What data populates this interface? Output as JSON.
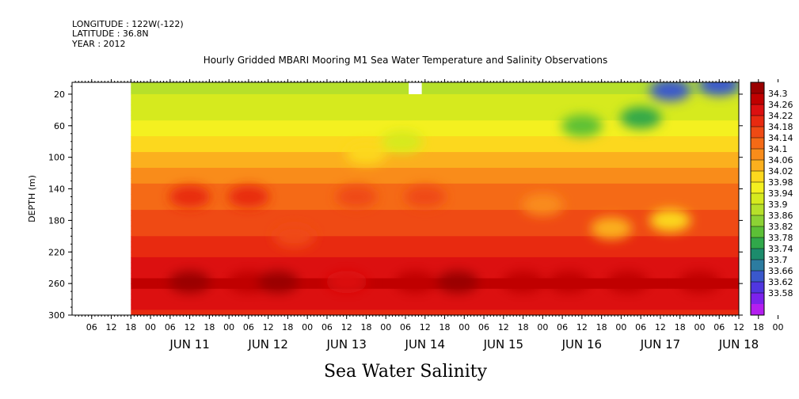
{
  "header": {
    "longitude": "LONGITUDE : 122W(-122)",
    "latitude": "LATITUDE : 36.8N",
    "year": "YEAR : 2012"
  },
  "chart_data": {
    "type": "heatmap",
    "title": "Hourly Gridded MBARI Mooring M1 Sea Water Temperature and Salinity Observations",
    "xlabel": "Sea Water Salinity",
    "ylabel": "DEPTH (m)",
    "x_range": [
      "2012-06-10T00:00",
      "2012-06-18T12:00"
    ],
    "data_start": "2012-06-10T18:00",
    "hour_ticks": [
      "06",
      "12",
      "18",
      "00",
      "06",
      "12",
      "18",
      "00",
      "06",
      "12",
      "18",
      "00",
      "06",
      "12",
      "18",
      "00",
      "06",
      "12",
      "18",
      "00",
      "06",
      "12",
      "18",
      "00",
      "06",
      "12",
      "18",
      "00",
      "06",
      "12",
      "18",
      "00",
      "06",
      "12",
      "18",
      "00"
    ],
    "day_labels": [
      "JUN 11",
      "JUN 12",
      "JUN 13",
      "JUN 14",
      "JUN 15",
      "JUN 16",
      "JUN 17",
      "JUN 18"
    ],
    "y_ticks": [
      20,
      60,
      100,
      140,
      180,
      220,
      260,
      300
    ],
    "y_range": [
      5,
      300
    ],
    "y_inverted": true,
    "colorbar_levels": [
      "34.3",
      "34.26",
      "34.22",
      "34.18",
      "34.14",
      "34.1",
      "34.06",
      "34.02",
      "33.98",
      "33.94",
      "33.9",
      "33.86",
      "33.82",
      "33.78",
      "33.74",
      "33.7",
      "33.66",
      "33.62",
      "33.58"
    ],
    "colorbar_colors": [
      "#9a0000",
      "#c00000",
      "#dc1010",
      "#e82a10",
      "#ef4a14",
      "#f56a16",
      "#f98c1a",
      "#fbb01e",
      "#fcd81e",
      "#f4f020",
      "#d6ea1e",
      "#b6e02a",
      "#8cd234",
      "#5cc036",
      "#30a84a",
      "#1c8c6c",
      "#2c7ca0",
      "#3a58cc",
      "#5036e0",
      "#7c22ec",
      "#b41ef0"
    ],
    "depth_profile": [
      {
        "depth": 5,
        "salinity": 33.9
      },
      {
        "depth": 20,
        "salinity": 33.92
      },
      {
        "depth": 60,
        "salinity": 33.97
      },
      {
        "depth": 100,
        "salinity": 34.04
      },
      {
        "depth": 140,
        "salinity": 34.12
      },
      {
        "depth": 180,
        "salinity": 34.15
      },
      {
        "depth": 220,
        "salinity": 34.2
      },
      {
        "depth": 260,
        "salinity": 34.26
      },
      {
        "depth": 300,
        "salinity": 34.2
      }
    ],
    "features": [
      {
        "time": "2012-06-11T12:00",
        "depth": 258,
        "salinity": 34.3
      },
      {
        "time": "2012-06-12T06:00",
        "depth": 258,
        "salinity": 34.27
      },
      {
        "time": "2012-06-12T15:00",
        "depth": 258,
        "salinity": 34.3
      },
      {
        "time": "2012-06-13T12:00",
        "depth": 258,
        "salinity": 34.24
      },
      {
        "time": "2012-06-14T09:00",
        "depth": 258,
        "salinity": 34.26
      },
      {
        "time": "2012-06-14T22:00",
        "depth": 258,
        "salinity": 34.29
      },
      {
        "time": "2012-06-15T18:00",
        "depth": 258,
        "salinity": 34.25
      },
      {
        "time": "2012-06-16T08:00",
        "depth": 258,
        "salinity": 34.27
      },
      {
        "time": "2012-06-17T02:00",
        "depth": 258,
        "salinity": 34.25
      },
      {
        "time": "2012-06-18T00:00",
        "depth": 258,
        "salinity": 34.27
      },
      {
        "time": "2012-06-11T12:00",
        "depth": 150,
        "salinity": 34.19
      },
      {
        "time": "2012-06-12T06:00",
        "depth": 150,
        "salinity": 34.18
      },
      {
        "time": "2012-06-13T15:00",
        "depth": 150,
        "salinity": 34.16
      },
      {
        "time": "2012-06-14T12:00",
        "depth": 150,
        "salinity": 34.15
      },
      {
        "time": "2012-06-12T20:00",
        "depth": 200,
        "salinity": 34.16
      },
      {
        "time": "2012-06-16T21:00",
        "depth": 190,
        "salinity": 34.04
      },
      {
        "time": "2012-06-17T15:00",
        "depth": 180,
        "salinity": 34.02
      },
      {
        "time": "2012-06-16T00:00",
        "depth": 160,
        "salinity": 34.08
      },
      {
        "time": "2012-06-16T12:00",
        "depth": 60,
        "salinity": 33.82
      },
      {
        "time": "2012-06-17T06:00",
        "depth": 50,
        "salinity": 33.8
      },
      {
        "time": "2012-06-17T15:00",
        "depth": 15,
        "salinity": 33.7
      },
      {
        "time": "2012-06-18T06:00",
        "depth": 8,
        "salinity": 33.68
      },
      {
        "time": "2012-06-13T18:00",
        "depth": 95,
        "salinity": 34.0
      },
      {
        "time": "2012-06-14T05:00",
        "depth": 80,
        "salinity": 33.95
      }
    ],
    "missing_blocks": [
      {
        "time_start": "2012-06-14T07:00",
        "time_end": "2012-06-14T11:00",
        "depth_start": 5,
        "depth_end": 20
      }
    ]
  }
}
